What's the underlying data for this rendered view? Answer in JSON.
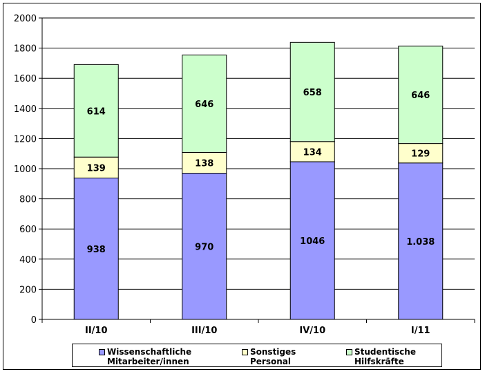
{
  "chart_data": {
    "type": "bar",
    "stacked": true,
    "categories": [
      "II/10",
      "III/10",
      "IV/10",
      "I/11"
    ],
    "series": [
      {
        "name": "Wissenschaftliche Mitarbeiter/innen",
        "name_lines": [
          "Wissenschaftliche",
          "Mitarbeiter/innen"
        ],
        "values": [
          938,
          970,
          1046,
          1038
        ],
        "labels": [
          "938",
          "970",
          "1046",
          "1.038"
        ],
        "color": "#9999ff"
      },
      {
        "name": "Sonstiges Personal",
        "name_lines": [
          "Sonstiges",
          "Personal"
        ],
        "values": [
          139,
          138,
          134,
          129
        ],
        "labels": [
          "139",
          "138",
          "134",
          "129"
        ],
        "color": "#ffffcc"
      },
      {
        "name": "Studentische Hilfskräfte",
        "name_lines": [
          "Studentische",
          "Hilfskräfte"
        ],
        "values": [
          614,
          646,
          658,
          646
        ],
        "labels": [
          "614",
          "646",
          "658",
          "646"
        ],
        "color": "#ccffcc"
      }
    ],
    "yticks": [
      "0",
      "200",
      "400",
      "600",
      "800",
      "1000",
      "1200",
      "1400",
      "1600",
      "1800",
      "2000"
    ],
    "ylim": [
      0,
      2000
    ],
    "grid": true,
    "legend_position": "bottom",
    "title": "",
    "xlabel": "",
    "ylabel": ""
  }
}
